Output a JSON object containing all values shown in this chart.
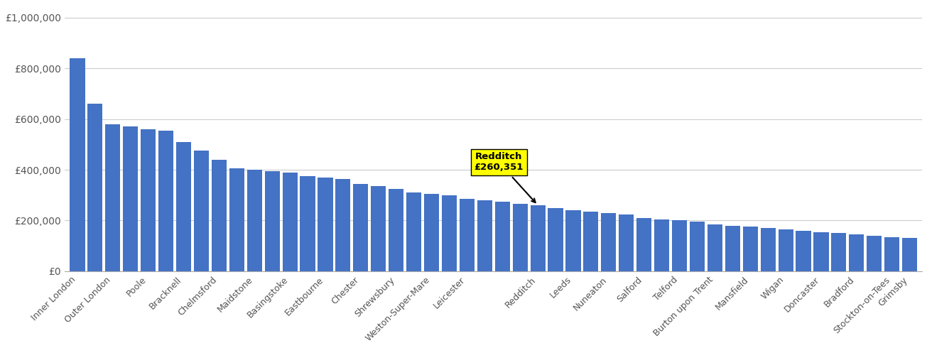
{
  "values": [
    840000,
    660000,
    580000,
    570000,
    560000,
    555000,
    510000,
    475000,
    440000,
    405000,
    400000,
    395000,
    390000,
    375000,
    370000,
    365000,
    345000,
    335000,
    325000,
    310000,
    305000,
    300000,
    285000,
    280000,
    275000,
    265000,
    260351,
    250000,
    240000,
    235000,
    230000,
    225000,
    210000,
    205000,
    200000,
    195000,
    185000,
    180000,
    175000,
    170000,
    165000,
    160000,
    155000,
    150000,
    145000,
    140000,
    135000,
    130000
  ],
  "redditch_value": 260351,
  "bar_color": "#4472c4",
  "highlight_label": "Redditch\n£260,351",
  "highlight_box_color": "yellow",
  "tick_labels": [
    "Inner London",
    "Outer London",
    "Poole",
    "Bracknell",
    "Chelmsford",
    "Maidstone",
    "Basingstoke",
    "Eastbourne",
    "Chester",
    "Shrewsbury",
    "Weston-Super-Mare",
    "Leicester",
    "Redditch",
    "Leeds",
    "Nuneaton",
    "Salford",
    "Telford",
    "Burton upon Trent",
    "Mansfield",
    "Wigan",
    "Doncaster",
    "Bradford",
    "Stockton-on-Tees",
    "Grimsby"
  ],
  "tick_positions": [
    0,
    2,
    4,
    6,
    8,
    10,
    12,
    14,
    16,
    18,
    20,
    22,
    26,
    28,
    30,
    32,
    34,
    36,
    38,
    40,
    42,
    44,
    46,
    47
  ],
  "redditch_bar_index": 26,
  "yticks": [
    0,
    200000,
    400000,
    600000,
    800000,
    1000000
  ],
  "ytick_labels": [
    "£0",
    "£200,000",
    "£400,000",
    "£600,000",
    "£800,000",
    "£1,000,000"
  ],
  "ylim": [
    0,
    1050000
  ],
  "background_color": "#ffffff",
  "grid_color": "#cccccc",
  "spine_color": "#aaaaaa",
  "tick_color": "#555555"
}
